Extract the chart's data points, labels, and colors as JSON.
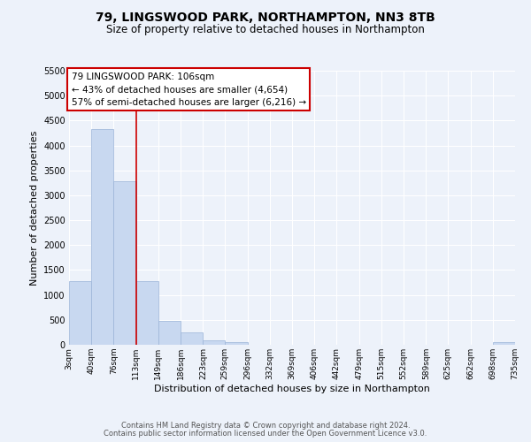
{
  "title": "79, LINGSWOOD PARK, NORTHAMPTON, NN3 8TB",
  "subtitle": "Size of property relative to detached houses in Northampton",
  "xlabel": "Distribution of detached houses by size in Northampton",
  "ylabel": "Number of detached properties",
  "bar_color": "#c8d8f0",
  "bar_edge_color": "#9ab4d8",
  "background_color": "#edf2fa",
  "grid_color": "#ffffff",
  "bin_edges": [
    3,
    40,
    76,
    113,
    149,
    186,
    223,
    259,
    296,
    332,
    369,
    406,
    442,
    479,
    515,
    552,
    589,
    625,
    662,
    698,
    735
  ],
  "bin_labels": [
    "3sqm",
    "40sqm",
    "76sqm",
    "113sqm",
    "149sqm",
    "186sqm",
    "223sqm",
    "259sqm",
    "296sqm",
    "332sqm",
    "369sqm",
    "406sqm",
    "442sqm",
    "479sqm",
    "515sqm",
    "552sqm",
    "589sqm",
    "625sqm",
    "662sqm",
    "698sqm",
    "735sqm"
  ],
  "bar_heights": [
    1270,
    4330,
    3290,
    1280,
    480,
    240,
    90,
    50,
    0,
    0,
    0,
    0,
    0,
    0,
    0,
    0,
    0,
    0,
    0,
    50
  ],
  "property_line_x": 113,
  "property_line_color": "#cc0000",
  "ylim": [
    0,
    5500
  ],
  "yticks": [
    0,
    500,
    1000,
    1500,
    2000,
    2500,
    3000,
    3500,
    4000,
    4500,
    5000,
    5500
  ],
  "annotation_title": "79 LINGSWOOD PARK: 106sqm",
  "annotation_line1": "← 43% of detached houses are smaller (4,654)",
  "annotation_line2": "57% of semi-detached houses are larger (6,216) →",
  "annotation_box_color": "#ffffff",
  "annotation_box_edge": "#cc0000",
  "footer_line1": "Contains HM Land Registry data © Crown copyright and database right 2024.",
  "footer_line2": "Contains public sector information licensed under the Open Government Licence v3.0."
}
